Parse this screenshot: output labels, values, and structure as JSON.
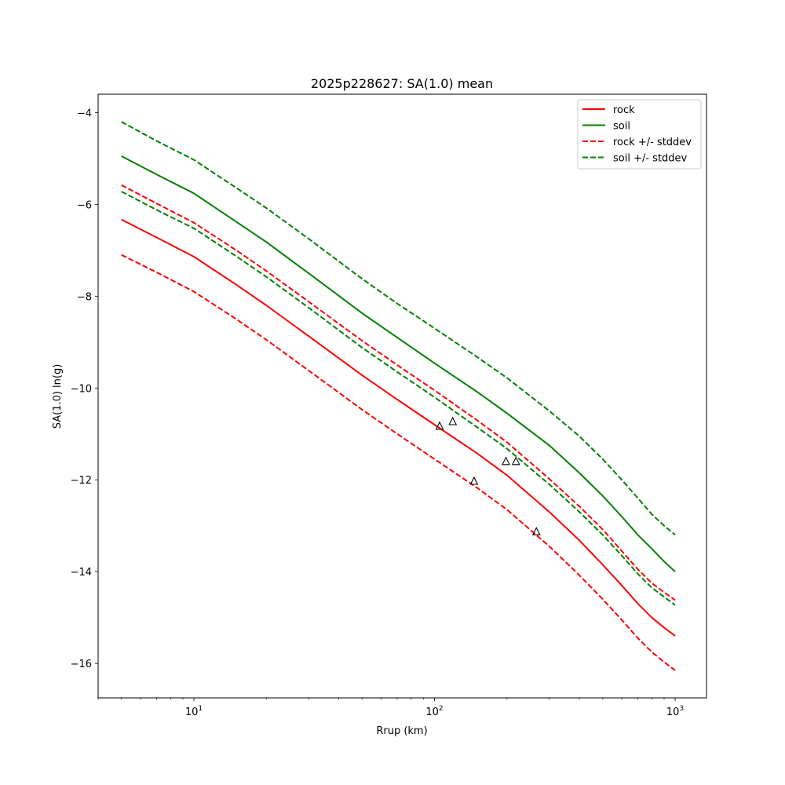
{
  "chart_data": {
    "type": "line",
    "title": "2025p228627: SA(1.0) mean",
    "xlabel": "Rrup (km)",
    "ylabel": "SA(1.0) ln(g)",
    "xscale": "log",
    "xlim": [
      4,
      1350
    ],
    "ylim": [
      -16.75,
      -3.6
    ],
    "xticks": [
      {
        "value": 10,
        "base": "10",
        "exp": "1"
      },
      {
        "value": 100,
        "base": "10",
        "exp": "2"
      },
      {
        "value": 1000,
        "base": "10",
        "exp": "3"
      }
    ],
    "yticks": [
      {
        "value": -4,
        "label": "−4"
      },
      {
        "value": -6,
        "label": "−6"
      },
      {
        "value": -8,
        "label": "−8"
      },
      {
        "value": -10,
        "label": "−10"
      },
      {
        "value": -12,
        "label": "−12"
      },
      {
        "value": -14,
        "label": "−14"
      },
      {
        "value": -16,
        "label": "−16"
      }
    ],
    "grid": false,
    "legend_position": "top-right",
    "series": [
      {
        "name": "soil +/- stddev",
        "color": "#008000",
        "dashed": true,
        "x": [
          5,
          7,
          10,
          15,
          20,
          30,
          50,
          70,
          100,
          150,
          200,
          300,
          400,
          500,
          600,
          700,
          800,
          900,
          1000
        ],
        "y": [
          -4.2,
          -4.62,
          -5.03,
          -5.64,
          -6.08,
          -6.75,
          -7.62,
          -8.16,
          -8.7,
          -9.32,
          -9.78,
          -10.5,
          -11.05,
          -11.55,
          -12.0,
          -12.4,
          -12.75,
          -13.0,
          -13.2
        ]
      },
      {
        "name": "soil",
        "color": "#008000",
        "dashed": false,
        "x": [
          5,
          7,
          10,
          15,
          20,
          30,
          50,
          70,
          100,
          150,
          200,
          300,
          400,
          500,
          600,
          700,
          800,
          900,
          1000
        ],
        "y": [
          -4.95,
          -5.35,
          -5.76,
          -6.38,
          -6.82,
          -7.5,
          -8.37,
          -8.9,
          -9.46,
          -10.08,
          -10.55,
          -11.25,
          -11.85,
          -12.35,
          -12.8,
          -13.2,
          -13.5,
          -13.78,
          -14.0
        ]
      },
      {
        "name": "rock +/- stddev",
        "color": "#ff0000",
        "dashed": true,
        "x": [
          5,
          7,
          10,
          15,
          20,
          30,
          50,
          70,
          100,
          150,
          200,
          300,
          400,
          500,
          600,
          700,
          800,
          900,
          1000
        ],
        "y": [
          -5.58,
          -5.98,
          -6.4,
          -7.0,
          -7.45,
          -8.12,
          -8.97,
          -9.5,
          -10.05,
          -10.7,
          -11.18,
          -11.98,
          -12.58,
          -13.08,
          -13.55,
          -13.95,
          -14.25,
          -14.45,
          -14.62
        ]
      },
      {
        "name": "soil +/- stddev",
        "color": "#008000",
        "dashed": true,
        "x": [
          5,
          7,
          10,
          15,
          20,
          30,
          50,
          70,
          100,
          150,
          200,
          300,
          400,
          500,
          600,
          700,
          800,
          900,
          1000
        ],
        "y": [
          -5.72,
          -6.12,
          -6.52,
          -7.13,
          -7.58,
          -8.25,
          -9.12,
          -9.65,
          -10.2,
          -10.85,
          -11.32,
          -12.1,
          -12.7,
          -13.2,
          -13.65,
          -14.05,
          -14.35,
          -14.55,
          -14.73
        ]
      },
      {
        "name": "rock",
        "color": "#ff0000",
        "dashed": false,
        "x": [
          5,
          7,
          10,
          15,
          20,
          30,
          50,
          70,
          100,
          150,
          200,
          300,
          400,
          500,
          600,
          700,
          800,
          900,
          1000
        ],
        "y": [
          -6.33,
          -6.72,
          -7.14,
          -7.75,
          -8.2,
          -8.87,
          -9.72,
          -10.25,
          -10.8,
          -11.42,
          -11.9,
          -12.7,
          -13.32,
          -13.85,
          -14.3,
          -14.7,
          -15.0,
          -15.22,
          -15.4
        ]
      },
      {
        "name": "rock +/- stddev",
        "color": "#ff0000",
        "dashed": true,
        "x": [
          5,
          7,
          10,
          15,
          20,
          30,
          50,
          70,
          100,
          150,
          200,
          300,
          400,
          500,
          600,
          700,
          800,
          900,
          1000
        ],
        "y": [
          -7.1,
          -7.48,
          -7.9,
          -8.5,
          -8.95,
          -9.62,
          -10.47,
          -11.0,
          -11.55,
          -12.17,
          -12.65,
          -13.45,
          -14.08,
          -14.6,
          -15.05,
          -15.45,
          -15.75,
          -15.97,
          -16.15
        ]
      }
    ],
    "observations": {
      "marker": "triangle",
      "x": [
        105,
        119,
        146,
        198,
        218,
        265
      ],
      "y": [
        -10.83,
        -10.73,
        -12.03,
        -11.6,
        -11.6,
        -13.13
      ]
    },
    "legend": [
      {
        "label": "rock",
        "color": "#ff0000",
        "dashed": false
      },
      {
        "label": "soil",
        "color": "#008000",
        "dashed": false
      },
      {
        "label": "rock +/- stddev",
        "color": "#ff0000",
        "dashed": true
      },
      {
        "label": "soil +/- stddev",
        "color": "#008000",
        "dashed": true
      }
    ]
  }
}
